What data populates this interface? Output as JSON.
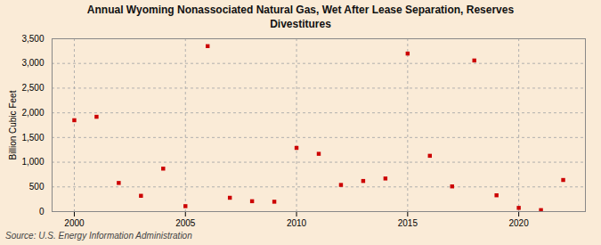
{
  "chart_data": {
    "type": "scatter",
    "title": "Annual Wyoming Nonassociated Natural Gas, Wet After Lease Separation, Reserves\nDivestitures",
    "ylabel": "Billion Cubic Feet",
    "annotations": [
      "Source: U.S. Energy Information Administration"
    ],
    "x": [
      2000,
      2001,
      2002,
      2003,
      2004,
      2005,
      2006,
      2007,
      2008,
      2009,
      2010,
      2011,
      2012,
      2013,
      2014,
      2015,
      2016,
      2017,
      2018,
      2019,
      2020,
      2021,
      2022
    ],
    "values": [
      1850,
      1920,
      580,
      320,
      870,
      110,
      3350,
      280,
      210,
      200,
      1290,
      1170,
      540,
      620,
      670,
      3200,
      1130,
      510,
      3060,
      330,
      75,
      30,
      640
    ],
    "color": "#cc0000",
    "marker": "square",
    "xlim": [
      1999,
      2023
    ],
    "xticks": [
      2000,
      2005,
      2010,
      2015,
      2020
    ],
    "ylim": [
      0,
      3500
    ],
    "yticks": [
      0,
      500,
      {
        "value": 1000,
        "label": "1,000"
      },
      {
        "value": 1500,
        "label": "1,500"
      },
      {
        "value": 2000,
        "label": "2,000"
      },
      {
        "value": 2500,
        "label": "2,500"
      },
      {
        "value": 3000,
        "label": "3,000"
      },
      {
        "value": 3500,
        "label": "3,500"
      }
    ],
    "grid": true
  }
}
